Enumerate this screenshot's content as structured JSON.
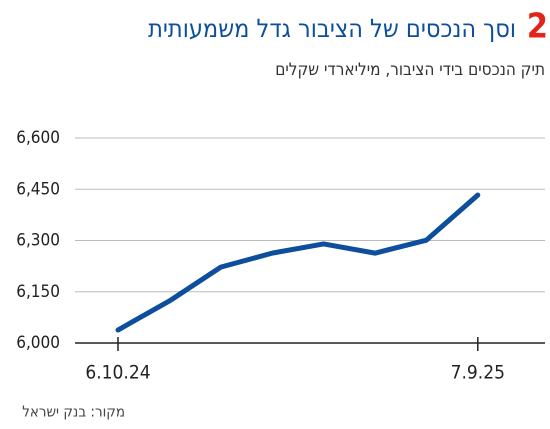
{
  "chart_data": {
    "type": "line",
    "title_number": "2",
    "title": "וסך הנכסים של הציבור גדל משמעותית",
    "subtitle": "תיק הנכסים בידי הציבור, מיליארדי שקלים",
    "source": "מקור: בנק ישראל",
    "categories": [
      "6.10.24",
      null,
      null,
      null,
      null,
      null,
      null,
      "7.9.25"
    ],
    "series": [
      {
        "color": "#0d4f9c",
        "values": [
          6038,
          6123,
          6222,
          6263,
          6290,
          6263,
          6301,
          6433
        ]
      }
    ],
    "ylim": [
      6000,
      6600
    ],
    "yticks": [
      {
        "value": 6000,
        "label": "6,000"
      },
      {
        "value": 6150,
        "label": "6,150"
      },
      {
        "value": 6300,
        "label": "6,300"
      },
      {
        "value": 6450,
        "label": "6,450"
      },
      {
        "value": 6600,
        "label": "6,600"
      }
    ],
    "grid": true
  }
}
